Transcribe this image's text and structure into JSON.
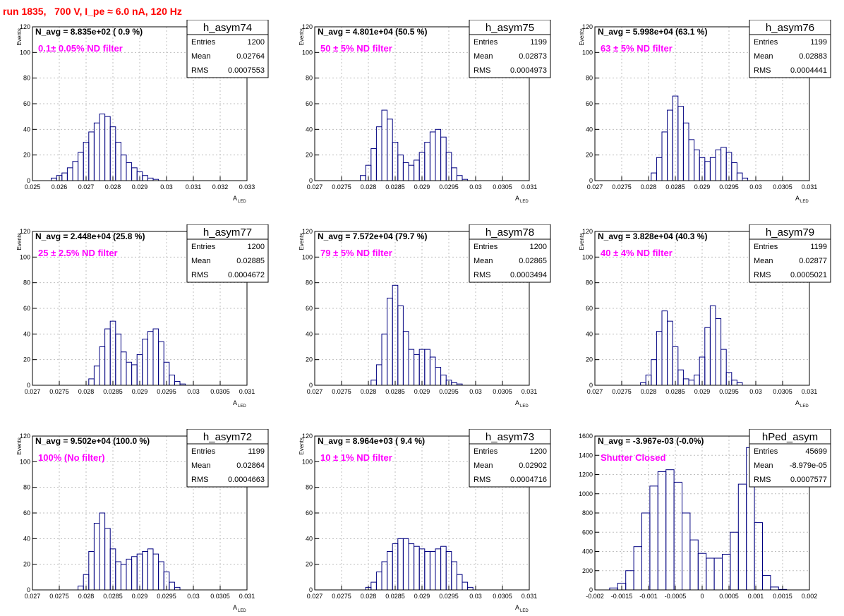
{
  "title": "run 1835,   700 V, I_pe ≈ 6.0 nA, 120 Hz",
  "colors": {
    "title": "#ff0000",
    "hist": "#000080",
    "annotation": "#ff00ff",
    "frame": "#000000",
    "grid": "#bfbfbf"
  },
  "chart_data": [
    {
      "type": "bar",
      "name": "h_asym74",
      "stats": [
        [
          "Entries",
          "1200"
        ],
        [
          "Mean",
          "0.02764"
        ],
        [
          "RMS",
          "0.0007553"
        ]
      ],
      "navg": "N_avg = 8.835e+02 ( 0.9 %)",
      "annotation": "0.1± 0.05% ND filter",
      "xlabel": "A",
      "xlabel_sub": "LED",
      "ylabel": "Events",
      "xlim": [
        0.025,
        0.033
      ],
      "ylim": [
        0,
        120
      ],
      "xticks": [
        "0.025",
        "0.026",
        "0.027",
        "0.028",
        "0.029",
        "0.03",
        "0.031",
        "0.032",
        "0.033"
      ],
      "yticks": [
        "0",
        "20",
        "40",
        "60",
        "80",
        "100",
        "120"
      ],
      "bins": [
        [
          0.0258,
          2
        ],
        [
          0.026,
          4
        ],
        [
          0.0262,
          6
        ],
        [
          0.0264,
          10
        ],
        [
          0.0266,
          15
        ],
        [
          0.0268,
          22
        ],
        [
          0.027,
          30
        ],
        [
          0.0272,
          38
        ],
        [
          0.0274,
          45
        ],
        [
          0.0276,
          52
        ],
        [
          0.0278,
          50
        ],
        [
          0.028,
          42
        ],
        [
          0.0282,
          30
        ],
        [
          0.0284,
          20
        ],
        [
          0.0286,
          14
        ],
        [
          0.0288,
          10
        ],
        [
          0.029,
          7
        ],
        [
          0.0292,
          4
        ],
        [
          0.0294,
          2
        ],
        [
          0.0296,
          1
        ]
      ]
    },
    {
      "type": "bar",
      "name": "h_asym75",
      "stats": [
        [
          "Entries",
          "1199"
        ],
        [
          "Mean",
          "0.02873"
        ],
        [
          "RMS",
          "0.0004973"
        ]
      ],
      "navg": "N_avg = 4.801e+04 (50.5 %)",
      "annotation": "50 ± 5% ND filter",
      "xlabel": "A",
      "xlabel_sub": "LED",
      "ylabel": "Events",
      "xlim": [
        0.027,
        0.031
      ],
      "ylim": [
        0,
        120
      ],
      "xticks": [
        "0.027",
        "0.0275",
        "0.028",
        "0.0285",
        "0.029",
        "0.0295",
        "0.03",
        "0.0305",
        "0.031"
      ],
      "yticks": [
        "0",
        "20",
        "40",
        "60",
        "80",
        "100",
        "120"
      ],
      "bins": [
        [
          0.0279,
          4
        ],
        [
          0.028,
          12
        ],
        [
          0.0281,
          25
        ],
        [
          0.0282,
          42
        ],
        [
          0.0283,
          55
        ],
        [
          0.0284,
          48
        ],
        [
          0.0285,
          30
        ],
        [
          0.0286,
          20
        ],
        [
          0.0287,
          14
        ],
        [
          0.0288,
          12
        ],
        [
          0.0289,
          16
        ],
        [
          0.029,
          22
        ],
        [
          0.0291,
          30
        ],
        [
          0.0292,
          38
        ],
        [
          0.0293,
          40
        ],
        [
          0.0294,
          34
        ],
        [
          0.0295,
          22
        ],
        [
          0.0296,
          10
        ],
        [
          0.0297,
          4
        ],
        [
          0.0298,
          1
        ]
      ]
    },
    {
      "type": "bar",
      "name": "h_asym76",
      "stats": [
        [
          "Entries",
          "1199"
        ],
        [
          "Mean",
          "0.02883"
        ],
        [
          "RMS",
          "0.0004441"
        ]
      ],
      "navg": "N_avg = 5.998e+04 (63.1 %)",
      "annotation": "63 ± 5% ND filter",
      "xlabel": "A",
      "xlabel_sub": "LED",
      "ylabel": "Events",
      "xlim": [
        0.027,
        0.031
      ],
      "ylim": [
        0,
        120
      ],
      "xticks": [
        "0.027",
        "0.0275",
        "0.028",
        "0.0285",
        "0.029",
        "0.0295",
        "0.03",
        "0.0305",
        "0.031"
      ],
      "yticks": [
        "0",
        "20",
        "40",
        "60",
        "80",
        "100",
        "120"
      ],
      "bins": [
        [
          0.0281,
          6
        ],
        [
          0.0282,
          18
        ],
        [
          0.0283,
          38
        ],
        [
          0.0284,
          55
        ],
        [
          0.0285,
          66
        ],
        [
          0.0286,
          58
        ],
        [
          0.0287,
          45
        ],
        [
          0.0288,
          32
        ],
        [
          0.0289,
          24
        ],
        [
          0.029,
          18
        ],
        [
          0.0291,
          15
        ],
        [
          0.0292,
          18
        ],
        [
          0.0293,
          24
        ],
        [
          0.0294,
          26
        ],
        [
          0.0295,
          22
        ],
        [
          0.0296,
          14
        ],
        [
          0.0297,
          6
        ],
        [
          0.0298,
          2
        ]
      ]
    },
    {
      "type": "bar",
      "name": "h_asym77",
      "stats": [
        [
          "Entries",
          "1200"
        ],
        [
          "Mean",
          "0.02885"
        ],
        [
          "RMS",
          "0.0004672"
        ]
      ],
      "navg": "N_avg = 2.448e+04 (25.8 %)",
      "annotation": "25 ± 2.5% ND filter",
      "xlabel": "A",
      "xlabel_sub": "LED",
      "ylabel": "Events",
      "xlim": [
        0.027,
        0.031
      ],
      "ylim": [
        0,
        120
      ],
      "xticks": [
        "0.027",
        "0.0275",
        "0.028",
        "0.0285",
        "0.029",
        "0.0295",
        "0.03",
        "0.0305",
        "0.031"
      ],
      "yticks": [
        "0",
        "20",
        "40",
        "60",
        "80",
        "100",
        "120"
      ],
      "bins": [
        [
          0.0281,
          5
        ],
        [
          0.0282,
          15
        ],
        [
          0.0283,
          30
        ],
        [
          0.0284,
          44
        ],
        [
          0.0285,
          50
        ],
        [
          0.0286,
          40
        ],
        [
          0.0287,
          26
        ],
        [
          0.0288,
          18
        ],
        [
          0.0289,
          16
        ],
        [
          0.029,
          24
        ],
        [
          0.0291,
          36
        ],
        [
          0.0292,
          42
        ],
        [
          0.0293,
          44
        ],
        [
          0.0294,
          34
        ],
        [
          0.0295,
          18
        ],
        [
          0.0296,
          8
        ],
        [
          0.0297,
          3
        ],
        [
          0.0298,
          1
        ]
      ]
    },
    {
      "type": "bar",
      "name": "h_asym78",
      "stats": [
        [
          "Entries",
          "1200"
        ],
        [
          "Mean",
          "0.02865"
        ],
        [
          "RMS",
          "0.0003494"
        ]
      ],
      "navg": "N_avg = 7.572e+04 (79.7 %)",
      "annotation": "79 ± 5% ND filter",
      "xlabel": "A",
      "xlabel_sub": "LED",
      "ylabel": "Events",
      "xlim": [
        0.027,
        0.031
      ],
      "ylim": [
        0,
        120
      ],
      "xticks": [
        "0.027",
        "0.0275",
        "0.028",
        "0.0285",
        "0.029",
        "0.0295",
        "0.03",
        "0.0305",
        "0.031"
      ],
      "yticks": [
        "0",
        "20",
        "40",
        "60",
        "80",
        "100",
        "120"
      ],
      "bins": [
        [
          0.0281,
          4
        ],
        [
          0.0282,
          16
        ],
        [
          0.0283,
          40
        ],
        [
          0.0284,
          68
        ],
        [
          0.0285,
          78
        ],
        [
          0.0286,
          62
        ],
        [
          0.0287,
          42
        ],
        [
          0.0288,
          28
        ],
        [
          0.0289,
          24
        ],
        [
          0.029,
          28
        ],
        [
          0.0291,
          28
        ],
        [
          0.0292,
          22
        ],
        [
          0.0293,
          14
        ],
        [
          0.0294,
          8
        ],
        [
          0.0295,
          4
        ],
        [
          0.0296,
          2
        ],
        [
          0.0297,
          1
        ]
      ]
    },
    {
      "type": "bar",
      "name": "h_asym79",
      "stats": [
        [
          "Entries",
          "1199"
        ],
        [
          "Mean",
          "0.02877"
        ],
        [
          "RMS",
          "0.0005021"
        ]
      ],
      "navg": "N_avg = 3.828e+04 (40.3 %)",
      "annotation": "40 ± 4% ND filter",
      "xlabel": "A",
      "xlabel_sub": "LED",
      "ylabel": "Events",
      "xlim": [
        0.027,
        0.031
      ],
      "ylim": [
        0,
        120
      ],
      "xticks": [
        "0.027",
        "0.0275",
        "0.028",
        "0.0285",
        "0.029",
        "0.0295",
        "0.03",
        "0.0305",
        "0.031"
      ],
      "yticks": [
        "0",
        "20",
        "40",
        "60",
        "80",
        "100",
        "120"
      ],
      "bins": [
        [
          0.0279,
          2
        ],
        [
          0.028,
          8
        ],
        [
          0.0281,
          20
        ],
        [
          0.0282,
          42
        ],
        [
          0.0283,
          58
        ],
        [
          0.0284,
          50
        ],
        [
          0.0285,
          30
        ],
        [
          0.0286,
          12
        ],
        [
          0.0287,
          5
        ],
        [
          0.0288,
          4
        ],
        [
          0.0289,
          8
        ],
        [
          0.029,
          22
        ],
        [
          0.0291,
          45
        ],
        [
          0.0292,
          62
        ],
        [
          0.0293,
          52
        ],
        [
          0.0294,
          28
        ],
        [
          0.0295,
          10
        ],
        [
          0.0296,
          4
        ],
        [
          0.0297,
          2
        ]
      ]
    },
    {
      "type": "bar",
      "name": "h_asym72",
      "stats": [
        [
          "Entries",
          "1199"
        ],
        [
          "Mean",
          "0.02864"
        ],
        [
          "RMS",
          "0.0004663"
        ]
      ],
      "navg": "N_avg = 9.502e+04 (100.0 %)",
      "annotation": "100% (No filter)",
      "xlabel": "A",
      "xlabel_sub": "LED",
      "ylabel": "Events",
      "xlim": [
        0.027,
        0.031
      ],
      "ylim": [
        0,
        120
      ],
      "xticks": [
        "0.027",
        "0.0275",
        "0.028",
        "0.0285",
        "0.029",
        "0.0295",
        "0.03",
        "0.0305",
        "0.031"
      ],
      "yticks": [
        "0",
        "20",
        "40",
        "60",
        "80",
        "100",
        "120"
      ],
      "bins": [
        [
          0.0279,
          3
        ],
        [
          0.028,
          12
        ],
        [
          0.0281,
          30
        ],
        [
          0.0282,
          52
        ],
        [
          0.0283,
          60
        ],
        [
          0.0284,
          48
        ],
        [
          0.0285,
          32
        ],
        [
          0.0286,
          22
        ],
        [
          0.0287,
          20
        ],
        [
          0.0288,
          24
        ],
        [
          0.0289,
          26
        ],
        [
          0.029,
          28
        ],
        [
          0.0291,
          30
        ],
        [
          0.0292,
          32
        ],
        [
          0.0293,
          28
        ],
        [
          0.0294,
          22
        ],
        [
          0.0295,
          14
        ],
        [
          0.0296,
          6
        ],
        [
          0.0297,
          2
        ]
      ]
    },
    {
      "type": "bar",
      "name": "h_asym73",
      "stats": [
        [
          "Entries",
          "1200"
        ],
        [
          "Mean",
          "0.02902"
        ],
        [
          "RMS",
          "0.0004716"
        ]
      ],
      "navg": "N_avg = 8.964e+03 ( 9.4 %)",
      "annotation": "10 ± 1% ND filter",
      "xlabel": "A",
      "xlabel_sub": "LED",
      "ylabel": "Events",
      "xlim": [
        0.027,
        0.031
      ],
      "ylim": [
        0,
        120
      ],
      "xticks": [
        "0.027",
        "0.0275",
        "0.028",
        "0.0285",
        "0.029",
        "0.0295",
        "0.03",
        "0.0305",
        "0.031"
      ],
      "yticks": [
        "0",
        "20",
        "40",
        "60",
        "80",
        "100",
        "120"
      ],
      "bins": [
        [
          0.028,
          2
        ],
        [
          0.0281,
          6
        ],
        [
          0.0282,
          14
        ],
        [
          0.0283,
          22
        ],
        [
          0.0284,
          30
        ],
        [
          0.0285,
          36
        ],
        [
          0.0286,
          40
        ],
        [
          0.0287,
          40
        ],
        [
          0.0288,
          36
        ],
        [
          0.0289,
          34
        ],
        [
          0.029,
          32
        ],
        [
          0.0291,
          30
        ],
        [
          0.0292,
          30
        ],
        [
          0.0293,
          32
        ],
        [
          0.0294,
          34
        ],
        [
          0.0295,
          30
        ],
        [
          0.0296,
          22
        ],
        [
          0.0297,
          12
        ],
        [
          0.0298,
          6
        ],
        [
          0.0299,
          2
        ]
      ]
    },
    {
      "type": "bar",
      "name": "hPed_asym",
      "stats": [
        [
          "Entries",
          "45699"
        ],
        [
          "Mean",
          "-8.979e-05"
        ],
        [
          "RMS",
          "0.0007577"
        ]
      ],
      "navg": "N_avg = -3.967e-03 (-0.0%)",
      "annotation": "Shutter Closed",
      "xlabel": "",
      "xlabel_sub": "",
      "ylabel": "",
      "xlim": [
        -0.002,
        0.002
      ],
      "ylim": [
        0,
        1600
      ],
      "xticks": [
        "-0.002",
        "-0.0015",
        "-0.001",
        "-0.0005",
        "0",
        "0.0005",
        "0.001",
        "0.0015",
        "0.002"
      ],
      "yticks": [
        "0",
        "200",
        "400",
        "600",
        "800",
        "1000",
        "1200",
        "1400",
        "1600"
      ],
      "bins": [
        [
          -0.00165,
          20
        ],
        [
          -0.0015,
          70
        ],
        [
          -0.00135,
          200
        ],
        [
          -0.0012,
          450
        ],
        [
          -0.00105,
          800
        ],
        [
          -0.0009,
          1080
        ],
        [
          -0.00075,
          1230
        ],
        [
          -0.0006,
          1250
        ],
        [
          -0.00045,
          1120
        ],
        [
          -0.0003,
          800
        ],
        [
          -0.00015,
          520
        ],
        [
          0,
          380
        ],
        [
          0.00015,
          330
        ],
        [
          0.0003,
          330
        ],
        [
          0.00045,
          370
        ],
        [
          0.0006,
          600
        ],
        [
          0.00075,
          1100
        ],
        [
          0.0009,
          1480
        ],
        [
          0.00105,
          700
        ],
        [
          0.0012,
          150
        ],
        [
          0.00135,
          30
        ],
        [
          0.0015,
          5
        ]
      ]
    }
  ]
}
